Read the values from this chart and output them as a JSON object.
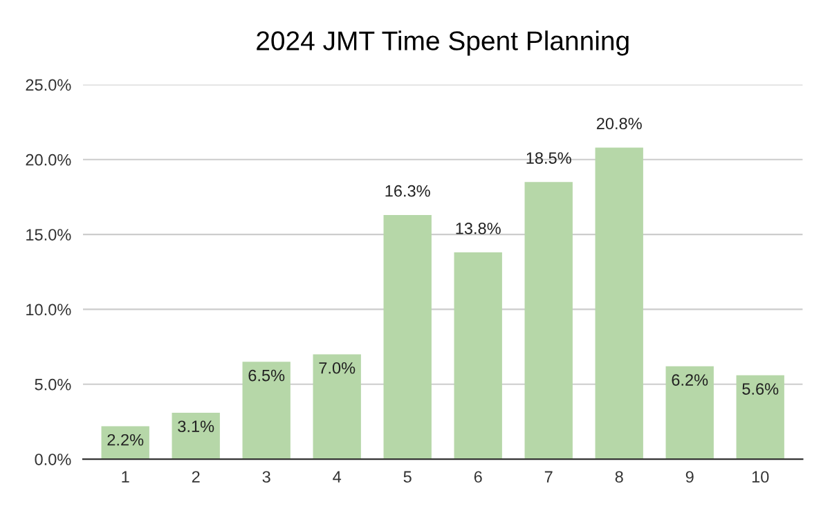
{
  "chart_data": {
    "type": "bar",
    "title": "2024 JMT Time Spent Planning",
    "categories": [
      "1",
      "2",
      "3",
      "4",
      "5",
      "6",
      "7",
      "8",
      "9",
      "10"
    ],
    "values": [
      2.2,
      3.1,
      6.5,
      7.0,
      16.3,
      13.8,
      18.5,
      20.8,
      6.2,
      5.6
    ],
    "value_labels": [
      "2.2%",
      "3.1%",
      "6.5%",
      "7.0%",
      "16.3%",
      "13.8%",
      "18.5%",
      "20.8%",
      "6.2%",
      "5.6%"
    ],
    "color": "#b6d7a8",
    "ylim": [
      0,
      25
    ],
    "yticks": [
      {
        "value": 0,
        "label": "0.0%"
      },
      {
        "value": 5,
        "label": "5.0%"
      },
      {
        "value": 10,
        "label": "10.0%"
      },
      {
        "value": 15,
        "label": "15.0%"
      },
      {
        "value": 20,
        "label": "20.0%"
      },
      {
        "value": 25,
        "label": "25.0%"
      }
    ],
    "grid": "y"
  }
}
